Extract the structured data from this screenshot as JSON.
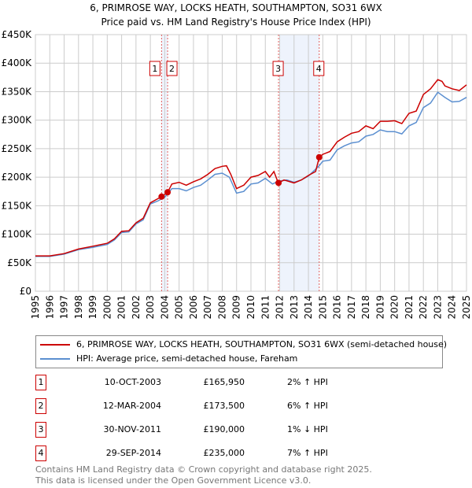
{
  "chart_data": {
    "type": "line",
    "title": "6, PRIMROSE WAY, LOCKS HEATH, SOUTHAMPTON, SO31 6WX",
    "subtitle": "Price paid vs. HM Land Registry's House Price Index (HPI)",
    "xlim": [
      1995,
      2025
    ],
    "ylim": [
      0,
      450000
    ],
    "x_ticks": [
      "1995",
      "1996",
      "1997",
      "1998",
      "1999",
      "2000",
      "2001",
      "2002",
      "2003",
      "2004",
      "2005",
      "2006",
      "2007",
      "2008",
      "2009",
      "2010",
      "2011",
      "2012",
      "2013",
      "2014",
      "2015",
      "2016",
      "2017",
      "2018",
      "2019",
      "2020",
      "2021",
      "2022",
      "2023",
      "2024",
      "2025"
    ],
    "y_ticks": [
      {
        "v": 0,
        "label": "£0"
      },
      {
        "v": 50000,
        "label": "£50K"
      },
      {
        "v": 100000,
        "label": "£100K"
      },
      {
        "v": 150000,
        "label": "£150K"
      },
      {
        "v": 200000,
        "label": "£200K"
      },
      {
        "v": 250000,
        "label": "£250K"
      },
      {
        "v": 300000,
        "label": "£300K"
      },
      {
        "v": 350000,
        "label": "£350K"
      },
      {
        "v": 400000,
        "label": "£400K"
      },
      {
        "v": 450000,
        "label": "£450K"
      }
    ],
    "grid": true,
    "shaded_ranges": [
      [
        2003.78,
        2004.2
      ],
      [
        2012.0,
        2014.75
      ]
    ],
    "series": [
      {
        "name": "6, PRIMROSE WAY, LOCKS HEATH, SOUTHAMPTON, SO31 6WX (semi-detached house)",
        "color": "#cc0000",
        "x": [
          1995,
          1996,
          1997,
          1998,
          1999,
          2000,
          2000.5,
          2001,
          2001.5,
          2002,
          2002.5,
          2003,
          2003.5,
          2003.78,
          2004.2,
          2004.5,
          2005,
          2005.5,
          2006,
          2006.5,
          2007,
          2007.5,
          2008,
          2008.3,
          2008.6,
          2009,
          2009.5,
          2010,
          2010.5,
          2011,
          2011.3,
          2011.6,
          2011.9,
          2012.3,
          2013,
          2013.5,
          2014,
          2014.5,
          2014.75,
          2015,
          2015.5,
          2016,
          2016.5,
          2017,
          2017.5,
          2018,
          2018.5,
          2019,
          2019.5,
          2020,
          2020.5,
          2021,
          2021.5,
          2022,
          2022.5,
          2023,
          2023.3,
          2023.5,
          2024,
          2024.5,
          2025
        ],
        "y": [
          62000,
          62000,
          66000,
          74000,
          79000,
          84000,
          92000,
          105000,
          106000,
          120000,
          128000,
          155000,
          162000,
          165950,
          173500,
          188000,
          191000,
          186000,
          192000,
          197000,
          205000,
          215000,
          219000,
          220000,
          205000,
          180000,
          186000,
          200000,
          203000,
          210000,
          200000,
          210000,
          190000,
          195000,
          190000,
          195000,
          203000,
          210000,
          235000,
          240000,
          245000,
          262000,
          270000,
          277000,
          280000,
          290000,
          285000,
          298000,
          298000,
          299000,
          294000,
          312000,
          316000,
          345000,
          355000,
          371000,
          368000,
          360000,
          355000,
          352000,
          362000
        ]
      },
      {
        "name": "HPI: Average price, semi-detached house, Fareham",
        "color": "#5b8fd0",
        "x": [
          1995,
          1996,
          1997,
          1998,
          1999,
          2000,
          2000.5,
          2001,
          2001.5,
          2002,
          2002.5,
          2003,
          2003.5,
          2004,
          2004.5,
          2005,
          2005.5,
          2006,
          2006.5,
          2007,
          2007.5,
          2008,
          2008.5,
          2009,
          2009.5,
          2010,
          2010.5,
          2011,
          2011.5,
          2011.9,
          2012.5,
          2013,
          2013.5,
          2014,
          2014.75,
          2015,
          2015.5,
          2016,
          2016.5,
          2017,
          2017.5,
          2018,
          2018.5,
          2019,
          2019.5,
          2020,
          2020.5,
          2021,
          2021.5,
          2022,
          2022.5,
          2023,
          2023.5,
          2024,
          2024.5,
          2025
        ],
        "y": [
          61000,
          61000,
          65000,
          73000,
          77000,
          82000,
          90000,
          103000,
          104000,
          118000,
          125000,
          153000,
          158000,
          165000,
          180000,
          180000,
          176000,
          182000,
          186000,
          195000,
          205000,
          207000,
          200000,
          172000,
          175000,
          188000,
          190000,
          198000,
          188000,
          193000,
          195000,
          191000,
          195000,
          202000,
          220000,
          228000,
          230000,
          248000,
          255000,
          260000,
          262000,
          272000,
          275000,
          283000,
          280000,
          280000,
          276000,
          290000,
          296000,
          322000,
          330000,
          349000,
          340000,
          332000,
          333000,
          340000
        ]
      }
    ],
    "sales": [
      {
        "id": "1",
        "x": 2003.78,
        "y": 165950,
        "date": "10-OCT-2003",
        "price": "£165,950",
        "hpi": "2% ↑ HPI"
      },
      {
        "id": "2",
        "x": 2004.2,
        "y": 173500,
        "date": "12-MAR-2004",
        "price": "£173,500",
        "hpi": "6% ↑ HPI"
      },
      {
        "id": "3",
        "x": 2011.92,
        "y": 190000,
        "date": "30-NOV-2011",
        "price": "£190,000",
        "hpi": "1% ↓ HPI"
      },
      {
        "id": "4",
        "x": 2014.75,
        "y": 235000,
        "date": "29-SEP-2014",
        "price": "£235,000",
        "hpi": "7% ↑ HPI"
      }
    ],
    "legend": {
      "placement": "below"
    }
  },
  "footer": {
    "line1": "Contains HM Land Registry data © Crown copyright and database right 2025.",
    "line2": "This data is licensed under the Open Government Licence v3.0."
  }
}
